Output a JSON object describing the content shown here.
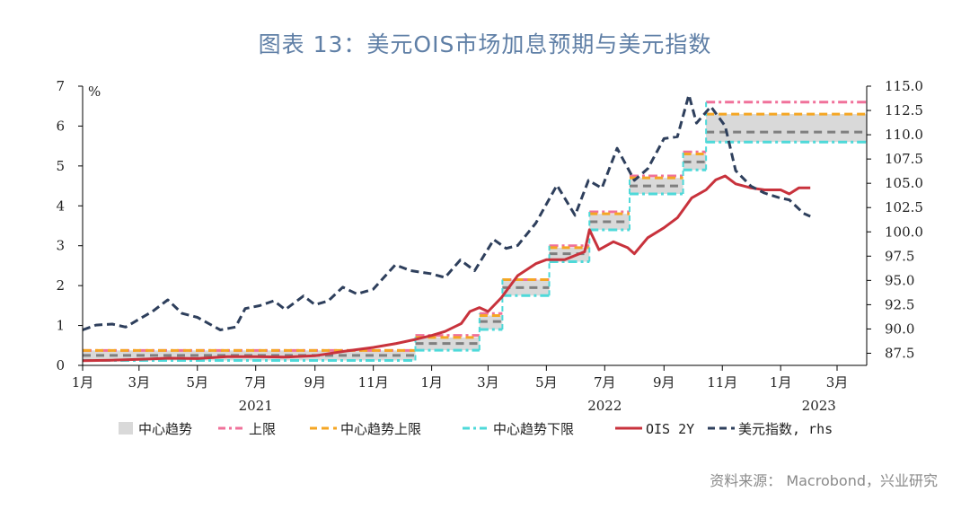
{
  "title": "图表 13：美元OIS市场加息预期与美元指数",
  "source": "资料来源： Macrobond，兴业研究",
  "colors": {
    "band_fill": "#d9d9d9",
    "upper_pink": "#f0719a",
    "center_gray": "#7f7f7f",
    "center_upper_orange": "#f5a623",
    "center_lower_cyan": "#4ed9d9",
    "ois": "#c8323c",
    "dxy": "#2e3f5c"
  },
  "chart_data": {
    "type": "line",
    "x_axis": {
      "tick_labels": [
        "1月",
        "3月",
        "5月",
        "7月",
        "9月",
        "11月",
        "1月",
        "3月",
        "5月",
        "7月",
        "9月",
        "11月",
        "1月",
        "3月"
      ],
      "year_labels": [
        "2021",
        "2022",
        "2023"
      ]
    },
    "y_left": {
      "unit_label": "%",
      "range": [
        0,
        7
      ],
      "ticks": [
        "0",
        "1",
        "2",
        "3",
        "4",
        "5",
        "6",
        "7"
      ]
    },
    "y_right": {
      "range": [
        86.25,
        115.0
      ],
      "ticks": [
        "87.5",
        "90.0",
        "92.5",
        "95.0",
        "97.5",
        "100.0",
        "102.5",
        "105.0",
        "107.5",
        "110.0",
        "112.5",
        "115.0"
      ]
    },
    "legend": [
      {
        "key": "band",
        "label": "中心趋势"
      },
      {
        "key": "upper",
        "label": "上限"
      },
      {
        "key": "center_upper",
        "label": "中心趋势上限"
      },
      {
        "key": "center_lower",
        "label": "中心趋势下限"
      },
      {
        "key": "ois",
        "label": "OIS 2Y"
      },
      {
        "key": "dxy",
        "label": "美元指数, rhs"
      }
    ],
    "fed_steps": [
      {
        "start": "2021-01-01",
        "end": "2021-12-15",
        "upper": 0.375,
        "center_upper": 0.375,
        "center": 0.25,
        "center_lower": 0.125
      },
      {
        "start": "2021-12-15",
        "end": "2022-02-20",
        "upper": 0.75,
        "center_upper": 0.7,
        "center": 0.55,
        "center_lower": 0.38
      },
      {
        "start": "2022-02-20",
        "end": "2022-03-16",
        "upper": 1.3,
        "center_upper": 1.25,
        "center": 1.1,
        "center_lower": 0.9
      },
      {
        "start": "2022-03-16",
        "end": "2022-05-04",
        "upper": 2.15,
        "center_upper": 2.15,
        "center": 1.95,
        "center_lower": 1.75
      },
      {
        "start": "2022-05-04",
        "end": "2022-06-15",
        "upper": 3.0,
        "center_upper": 2.95,
        "center": 2.8,
        "center_lower": 2.6
      },
      {
        "start": "2022-06-15",
        "end": "2022-07-27",
        "upper": 3.85,
        "center_upper": 3.8,
        "center": 3.6,
        "center_lower": 3.4
      },
      {
        "start": "2022-07-27",
        "end": "2022-09-21",
        "upper": 4.75,
        "center_upper": 4.7,
        "center": 4.5,
        "center_lower": 4.3
      },
      {
        "start": "2022-09-21",
        "end": "2022-10-15",
        "upper": 5.35,
        "center_upper": 5.3,
        "center": 5.1,
        "center_lower": 4.9
      },
      {
        "start": "2022-10-15",
        "end": "2023-04-01",
        "upper": 6.6,
        "center_upper": 6.3,
        "center": 5.85,
        "center_lower": 5.6
      }
    ],
    "series": [
      {
        "name": "OIS 2Y",
        "axis": "left",
        "points": [
          [
            "2021-01-01",
            0.12
          ],
          [
            "2021-02-01",
            0.13
          ],
          [
            "2021-03-01",
            0.15
          ],
          [
            "2021-04-01",
            0.18
          ],
          [
            "2021-05-01",
            0.17
          ],
          [
            "2021-06-01",
            0.22
          ],
          [
            "2021-07-01",
            0.22
          ],
          [
            "2021-08-01",
            0.21
          ],
          [
            "2021-09-01",
            0.24
          ],
          [
            "2021-10-01",
            0.35
          ],
          [
            "2021-11-01",
            0.45
          ],
          [
            "2021-11-25",
            0.55
          ],
          [
            "2021-12-15",
            0.65
          ],
          [
            "2022-01-01",
            0.75
          ],
          [
            "2022-01-15",
            0.85
          ],
          [
            "2022-02-01",
            1.05
          ],
          [
            "2022-02-10",
            1.35
          ],
          [
            "2022-02-20",
            1.45
          ],
          [
            "2022-03-01",
            1.35
          ],
          [
            "2022-03-15",
            1.7
          ],
          [
            "2022-04-01",
            2.25
          ],
          [
            "2022-04-20",
            2.55
          ],
          [
            "2022-05-01",
            2.65
          ],
          [
            "2022-05-20",
            2.65
          ],
          [
            "2022-06-10",
            2.85
          ],
          [
            "2022-06-15",
            3.4
          ],
          [
            "2022-06-25",
            2.9
          ],
          [
            "2022-07-10",
            3.1
          ],
          [
            "2022-07-25",
            2.95
          ],
          [
            "2022-08-01",
            2.8
          ],
          [
            "2022-08-15",
            3.2
          ],
          [
            "2022-09-01",
            3.45
          ],
          [
            "2022-09-15",
            3.7
          ],
          [
            "2022-09-30",
            4.2
          ],
          [
            "2022-10-15",
            4.4
          ],
          [
            "2022-10-25",
            4.65
          ],
          [
            "2022-11-04",
            4.75
          ],
          [
            "2022-11-15",
            4.55
          ],
          [
            "2022-12-01",
            4.45
          ],
          [
            "2022-12-15",
            4.4
          ],
          [
            "2023-01-01",
            4.4
          ],
          [
            "2023-01-10",
            4.3
          ],
          [
            "2023-01-20",
            4.45
          ],
          [
            "2023-02-01",
            4.45
          ]
        ]
      },
      {
        "name": "美元指数, rhs",
        "axis": "right",
        "points": [
          [
            "2021-01-01",
            89.9
          ],
          [
            "2021-01-15",
            90.4
          ],
          [
            "2021-02-01",
            90.5
          ],
          [
            "2021-02-15",
            90.2
          ],
          [
            "2021-03-01",
            91.0
          ],
          [
            "2021-03-15",
            91.8
          ],
          [
            "2021-03-31",
            93.0
          ],
          [
            "2021-04-15",
            91.6
          ],
          [
            "2021-05-01",
            91.2
          ],
          [
            "2021-05-25",
            89.9
          ],
          [
            "2021-06-10",
            90.2
          ],
          [
            "2021-06-20",
            92.1
          ],
          [
            "2021-07-05",
            92.4
          ],
          [
            "2021-07-20",
            92.9
          ],
          [
            "2021-08-01",
            92.0
          ],
          [
            "2021-08-20",
            93.4
          ],
          [
            "2021-09-01",
            92.5
          ],
          [
            "2021-09-15",
            92.9
          ],
          [
            "2021-09-30",
            94.3
          ],
          [
            "2021-10-15",
            93.6
          ],
          [
            "2021-11-01",
            94.1
          ],
          [
            "2021-11-24",
            96.6
          ],
          [
            "2021-12-10",
            96.0
          ],
          [
            "2021-12-31",
            95.7
          ],
          [
            "2022-01-15",
            95.3
          ],
          [
            "2022-01-31",
            97.1
          ],
          [
            "2022-02-15",
            96.0
          ],
          [
            "2022-03-07",
            99.2
          ],
          [
            "2022-03-20",
            98.3
          ],
          [
            "2022-04-01",
            98.6
          ],
          [
            "2022-04-20",
            100.9
          ],
          [
            "2022-05-12",
            104.8
          ],
          [
            "2022-05-31",
            101.7
          ],
          [
            "2022-06-14",
            105.3
          ],
          [
            "2022-06-28",
            104.5
          ],
          [
            "2022-07-14",
            108.6
          ],
          [
            "2022-08-01",
            105.3
          ],
          [
            "2022-08-15",
            106.5
          ],
          [
            "2022-09-01",
            109.6
          ],
          [
            "2022-09-15",
            109.8
          ],
          [
            "2022-09-27",
            114.1
          ],
          [
            "2022-10-05",
            111.2
          ],
          [
            "2022-10-20",
            112.9
          ],
          [
            "2022-11-04",
            110.9
          ],
          [
            "2022-11-15",
            106.3
          ],
          [
            "2022-12-01",
            104.7
          ],
          [
            "2022-12-15",
            104.0
          ],
          [
            "2022-12-31",
            103.5
          ],
          [
            "2023-01-10",
            103.3
          ],
          [
            "2023-01-25",
            101.9
          ],
          [
            "2023-02-01",
            101.6
          ]
        ]
      }
    ]
  }
}
